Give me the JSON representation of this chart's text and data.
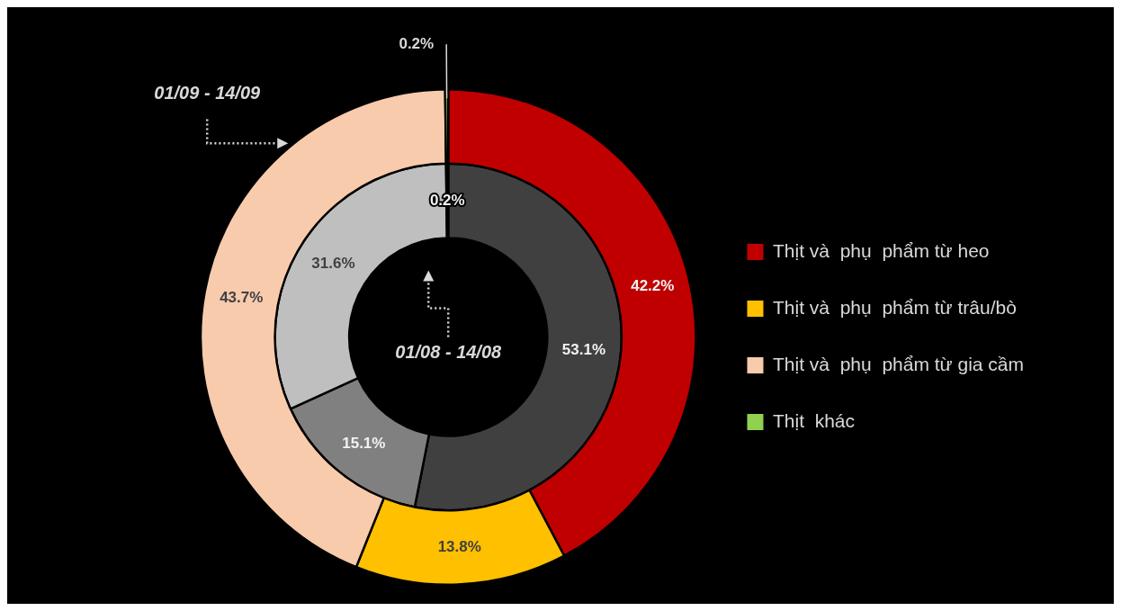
{
  "chart_data": {
    "type": "donut",
    "categories": [
      "Thịt và  phụ  phẩm từ heo",
      "Thịt và  phụ  phẩm từ trâu/bò",
      "Thịt và  phụ  phẩm từ gia cầm",
      "Thịt  khác"
    ],
    "series": [
      {
        "name": "01/09 - 14/09",
        "values": [
          42.2,
          13.8,
          43.7,
          0.2
        ],
        "value_labels": [
          "42.2%",
          "13.8%",
          "43.7%",
          "0.2%"
        ],
        "colors": [
          "#c00000",
          "#ffc000",
          "#f8cbad",
          "#92d050"
        ]
      },
      {
        "name": "01/08 - 14/08",
        "values": [
          53.1,
          15.1,
          31.6,
          0.2
        ],
        "value_labels": [
          "53.1%",
          "15.1%",
          "31.6%",
          "0.2%"
        ],
        "colors": [
          "#404040",
          "#808080",
          "#bfbfbf",
          "#d0d0d0"
        ]
      }
    ],
    "legend": "right"
  }
}
